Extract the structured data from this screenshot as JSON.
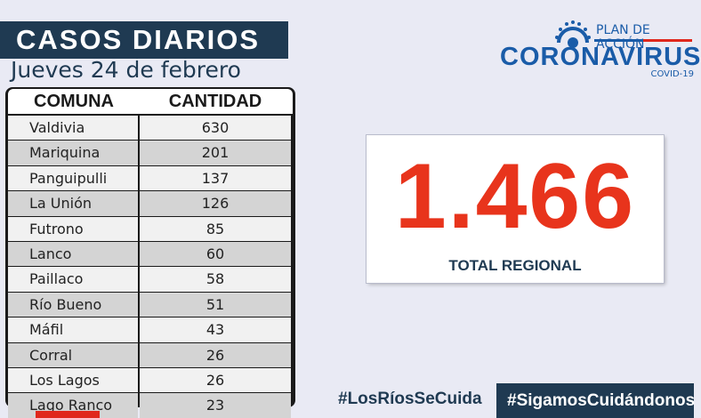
{
  "header": {
    "title": "CASOS DIARIOS",
    "date": "Jueves 24 de febrero"
  },
  "table": {
    "columns": [
      "COMUNA",
      "CANTIDAD"
    ],
    "rows": [
      {
        "comuna": "Valdivia",
        "cantidad": "630"
      },
      {
        "comuna": "Mariquina",
        "cantidad": "201"
      },
      {
        "comuna": "Panguipulli",
        "cantidad": "137"
      },
      {
        "comuna": "La Unión",
        "cantidad": "126"
      },
      {
        "comuna": "Futrono",
        "cantidad": "85"
      },
      {
        "comuna": "Lanco",
        "cantidad": "60"
      },
      {
        "comuna": "Paillaco",
        "cantidad": "58"
      },
      {
        "comuna": "Río Bueno",
        "cantidad": "51"
      },
      {
        "comuna": "Máfil",
        "cantidad": "43"
      },
      {
        "comuna": "Corral",
        "cantidad": "26"
      },
      {
        "comuna": "Los Lagos",
        "cantidad": "26"
      },
      {
        "comuna": "Lago Ranco",
        "cantidad": "23"
      }
    ]
  },
  "logo": {
    "top": "PLAN DE ACCIÓN",
    "main": "CORONAVIRUS",
    "sub": "COVID-19"
  },
  "total": {
    "value": "1.466",
    "label": "TOTAL REGIONAL"
  },
  "footer": {
    "hashtag_left": "#LosRíosSeCuida",
    "hashtag_right": "#SigamosCuidándonos"
  },
  "colors": {
    "navy": "#1f3a52",
    "red": "#e8341c",
    "brand_blue": "#1a5ca8",
    "background": "#e9eaf4"
  },
  "icons": [
    "coronavirus-icon"
  ]
}
